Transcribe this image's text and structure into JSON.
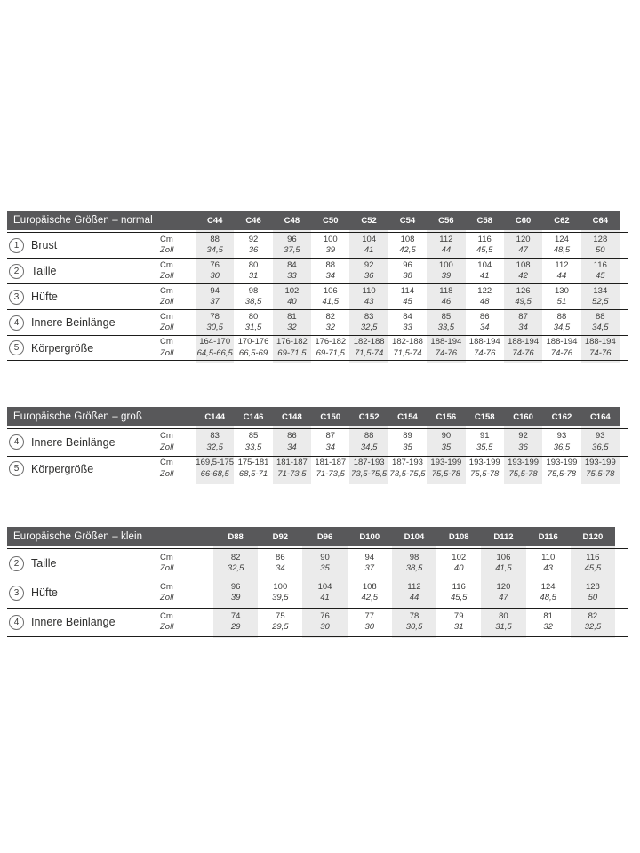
{
  "colors": {
    "header_bg": "#58585a",
    "header_text": "#ffffff",
    "column_shade": "#ebebeb",
    "rule_line": "#1d1d1b",
    "text": "#3a3a39"
  },
  "units": {
    "cm": "Cm",
    "zoll": "Zoll"
  },
  "tables": [
    {
      "id": "normal",
      "title": "Europäische Größen – normal",
      "columns": [
        "C44",
        "C46",
        "C48",
        "C50",
        "C52",
        "C54",
        "C56",
        "C58",
        "C60",
        "C62",
        "C64"
      ],
      "rows": [
        {
          "num": "1",
          "label": "Brust",
          "cm": [
            "88",
            "92",
            "96",
            "100",
            "104",
            "108",
            "112",
            "116",
            "120",
            "124",
            "128"
          ],
          "zoll": [
            "34,5",
            "36",
            "37,5",
            "39",
            "41",
            "42,5",
            "44",
            "45,5",
            "47",
            "48,5",
            "50"
          ]
        },
        {
          "num": "2",
          "label": "Taille",
          "cm": [
            "76",
            "80",
            "84",
            "88",
            "92",
            "96",
            "100",
            "104",
            "108",
            "112",
            "116"
          ],
          "zoll": [
            "30",
            "31",
            "33",
            "34",
            "36",
            "38",
            "39",
            "41",
            "42",
            "44",
            "45"
          ]
        },
        {
          "num": "3",
          "label": "Hüfte",
          "cm": [
            "94",
            "98",
            "102",
            "106",
            "110",
            "114",
            "118",
            "122",
            "126",
            "130",
            "134"
          ],
          "zoll": [
            "37",
            "38,5",
            "40",
            "41,5",
            "43",
            "45",
            "46",
            "48",
            "49,5",
            "51",
            "52,5"
          ]
        },
        {
          "num": "4",
          "label": "Innere Beinlänge",
          "cm": [
            "78",
            "80",
            "81",
            "82",
            "83",
            "84",
            "85",
            "86",
            "87",
            "88",
            "88"
          ],
          "zoll": [
            "30,5",
            "31,5",
            "32",
            "32",
            "32,5",
            "33",
            "33,5",
            "34",
            "34",
            "34,5",
            "34,5"
          ]
        },
        {
          "num": "5",
          "label": "Körpergröße",
          "cm": [
            "164-170",
            "170-176",
            "176-182",
            "176-182",
            "182-188",
            "182-188",
            "188-194",
            "188-194",
            "188-194",
            "188-194",
            "188-194"
          ],
          "zoll": [
            "64,5-66,5",
            "66,5-69",
            "69-71,5",
            "69-71,5",
            "71,5-74",
            "71,5-74",
            "74-76",
            "74-76",
            "74-76",
            "74-76",
            "74-76"
          ]
        }
      ]
    },
    {
      "id": "gross",
      "title": "Europäische Größen – groß",
      "columns": [
        "C144",
        "C146",
        "C148",
        "C150",
        "C152",
        "C154",
        "C156",
        "C158",
        "C160",
        "C162",
        "C164"
      ],
      "rows": [
        {
          "num": "4",
          "label": "Innere Beinlänge",
          "cm": [
            "83",
            "85",
            "86",
            "87",
            "88",
            "89",
            "90",
            "91",
            "92",
            "93",
            "93"
          ],
          "zoll": [
            "32,5",
            "33,5",
            "34",
            "34",
            "34,5",
            "35",
            "35",
            "35,5",
            "36",
            "36,5",
            "36,5"
          ]
        },
        {
          "num": "5",
          "label": "Körpergröße",
          "cm": [
            "169,5-175",
            "175-181",
            "181-187",
            "181-187",
            "187-193",
            "187-193",
            "193-199",
            "193-199",
            "193-199",
            "193-199",
            "193-199"
          ],
          "zoll": [
            "66-68,5",
            "68,5-71",
            "71-73,5",
            "71-73,5",
            "73,5-75,5",
            "73,5-75,5",
            "75,5-78",
            "75,5-78",
            "75,5-78",
            "75,5-78",
            "75,5-78"
          ]
        }
      ]
    },
    {
      "id": "klein",
      "title": "Europäische Größen – klein",
      "columns": [
        "D88",
        "D92",
        "D96",
        "D100",
        "D104",
        "D108",
        "D112",
        "D116",
        "D120"
      ],
      "rows": [
        {
          "num": "2",
          "label": "Taille",
          "cm": [
            "82",
            "86",
            "90",
            "94",
            "98",
            "102",
            "106",
            "110",
            "116"
          ],
          "zoll": [
            "32,5",
            "34",
            "35",
            "37",
            "38,5",
            "40",
            "41,5",
            "43",
            "45,5"
          ]
        },
        {
          "num": "3",
          "label": "Hüfte",
          "cm": [
            "96",
            "100",
            "104",
            "108",
            "112",
            "116",
            "120",
            "124",
            "128"
          ],
          "zoll": [
            "39",
            "39,5",
            "41",
            "42,5",
            "44",
            "45,5",
            "47",
            "48,5",
            "50"
          ]
        },
        {
          "num": "4",
          "label": "Innere Beinlänge",
          "cm": [
            "74",
            "75",
            "76",
            "77",
            "78",
            "79",
            "80",
            "81",
            "82"
          ],
          "zoll": [
            "29",
            "29,5",
            "30",
            "30",
            "30,5",
            "31",
            "31,5",
            "32",
            "32,5"
          ]
        }
      ]
    }
  ]
}
